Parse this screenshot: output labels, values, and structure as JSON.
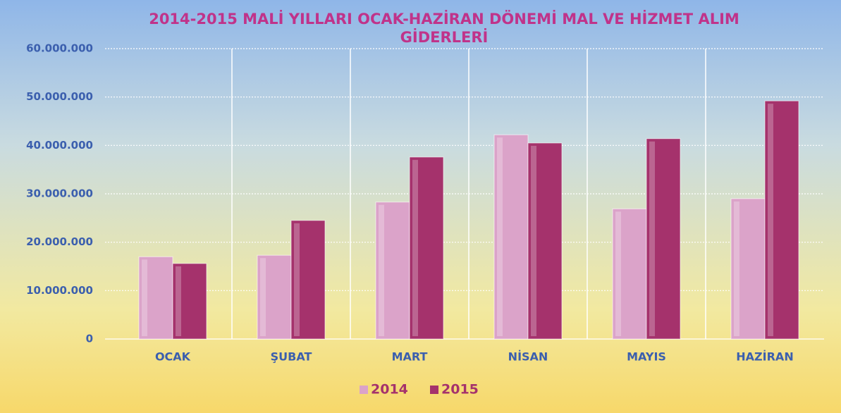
{
  "chart_data": {
    "type": "bar",
    "title": "2014-2015 MALİ YILLARI OCAK-HAZİRAN DÖNEMİ MAL VE HİZMET ALIM GİDERLERİ",
    "categories": [
      "OCAK",
      "ŞUBAT",
      "MART",
      "NİSAN",
      "MAYIS",
      "HAZİRAN"
    ],
    "series": [
      {
        "name": "2014",
        "color": "#dba3c9",
        "values": [
          17000000,
          17300000,
          28300000,
          42200000,
          26900000,
          29000000
        ]
      },
      {
        "name": "2015",
        "color": "#a5326c",
        "values": [
          15600000,
          24500000,
          37600000,
          40500000,
          41400000,
          49200000
        ]
      }
    ],
    "ylim": [
      0,
      60000000
    ],
    "yticks": [
      0,
      {
        "value": 10000000,
        "label": "10.000.000"
      },
      {
        "value": 20000000,
        "label": "20.000.000"
      },
      {
        "value": 30000000,
        "label": "30.000.000"
      },
      {
        "value": 40000000,
        "label": "40.000.000"
      },
      {
        "value": 50000000,
        "label": "50.000.000"
      },
      {
        "value": 60000000,
        "label": "60.000.000"
      }
    ],
    "grid": true,
    "legend": "bottom"
  }
}
